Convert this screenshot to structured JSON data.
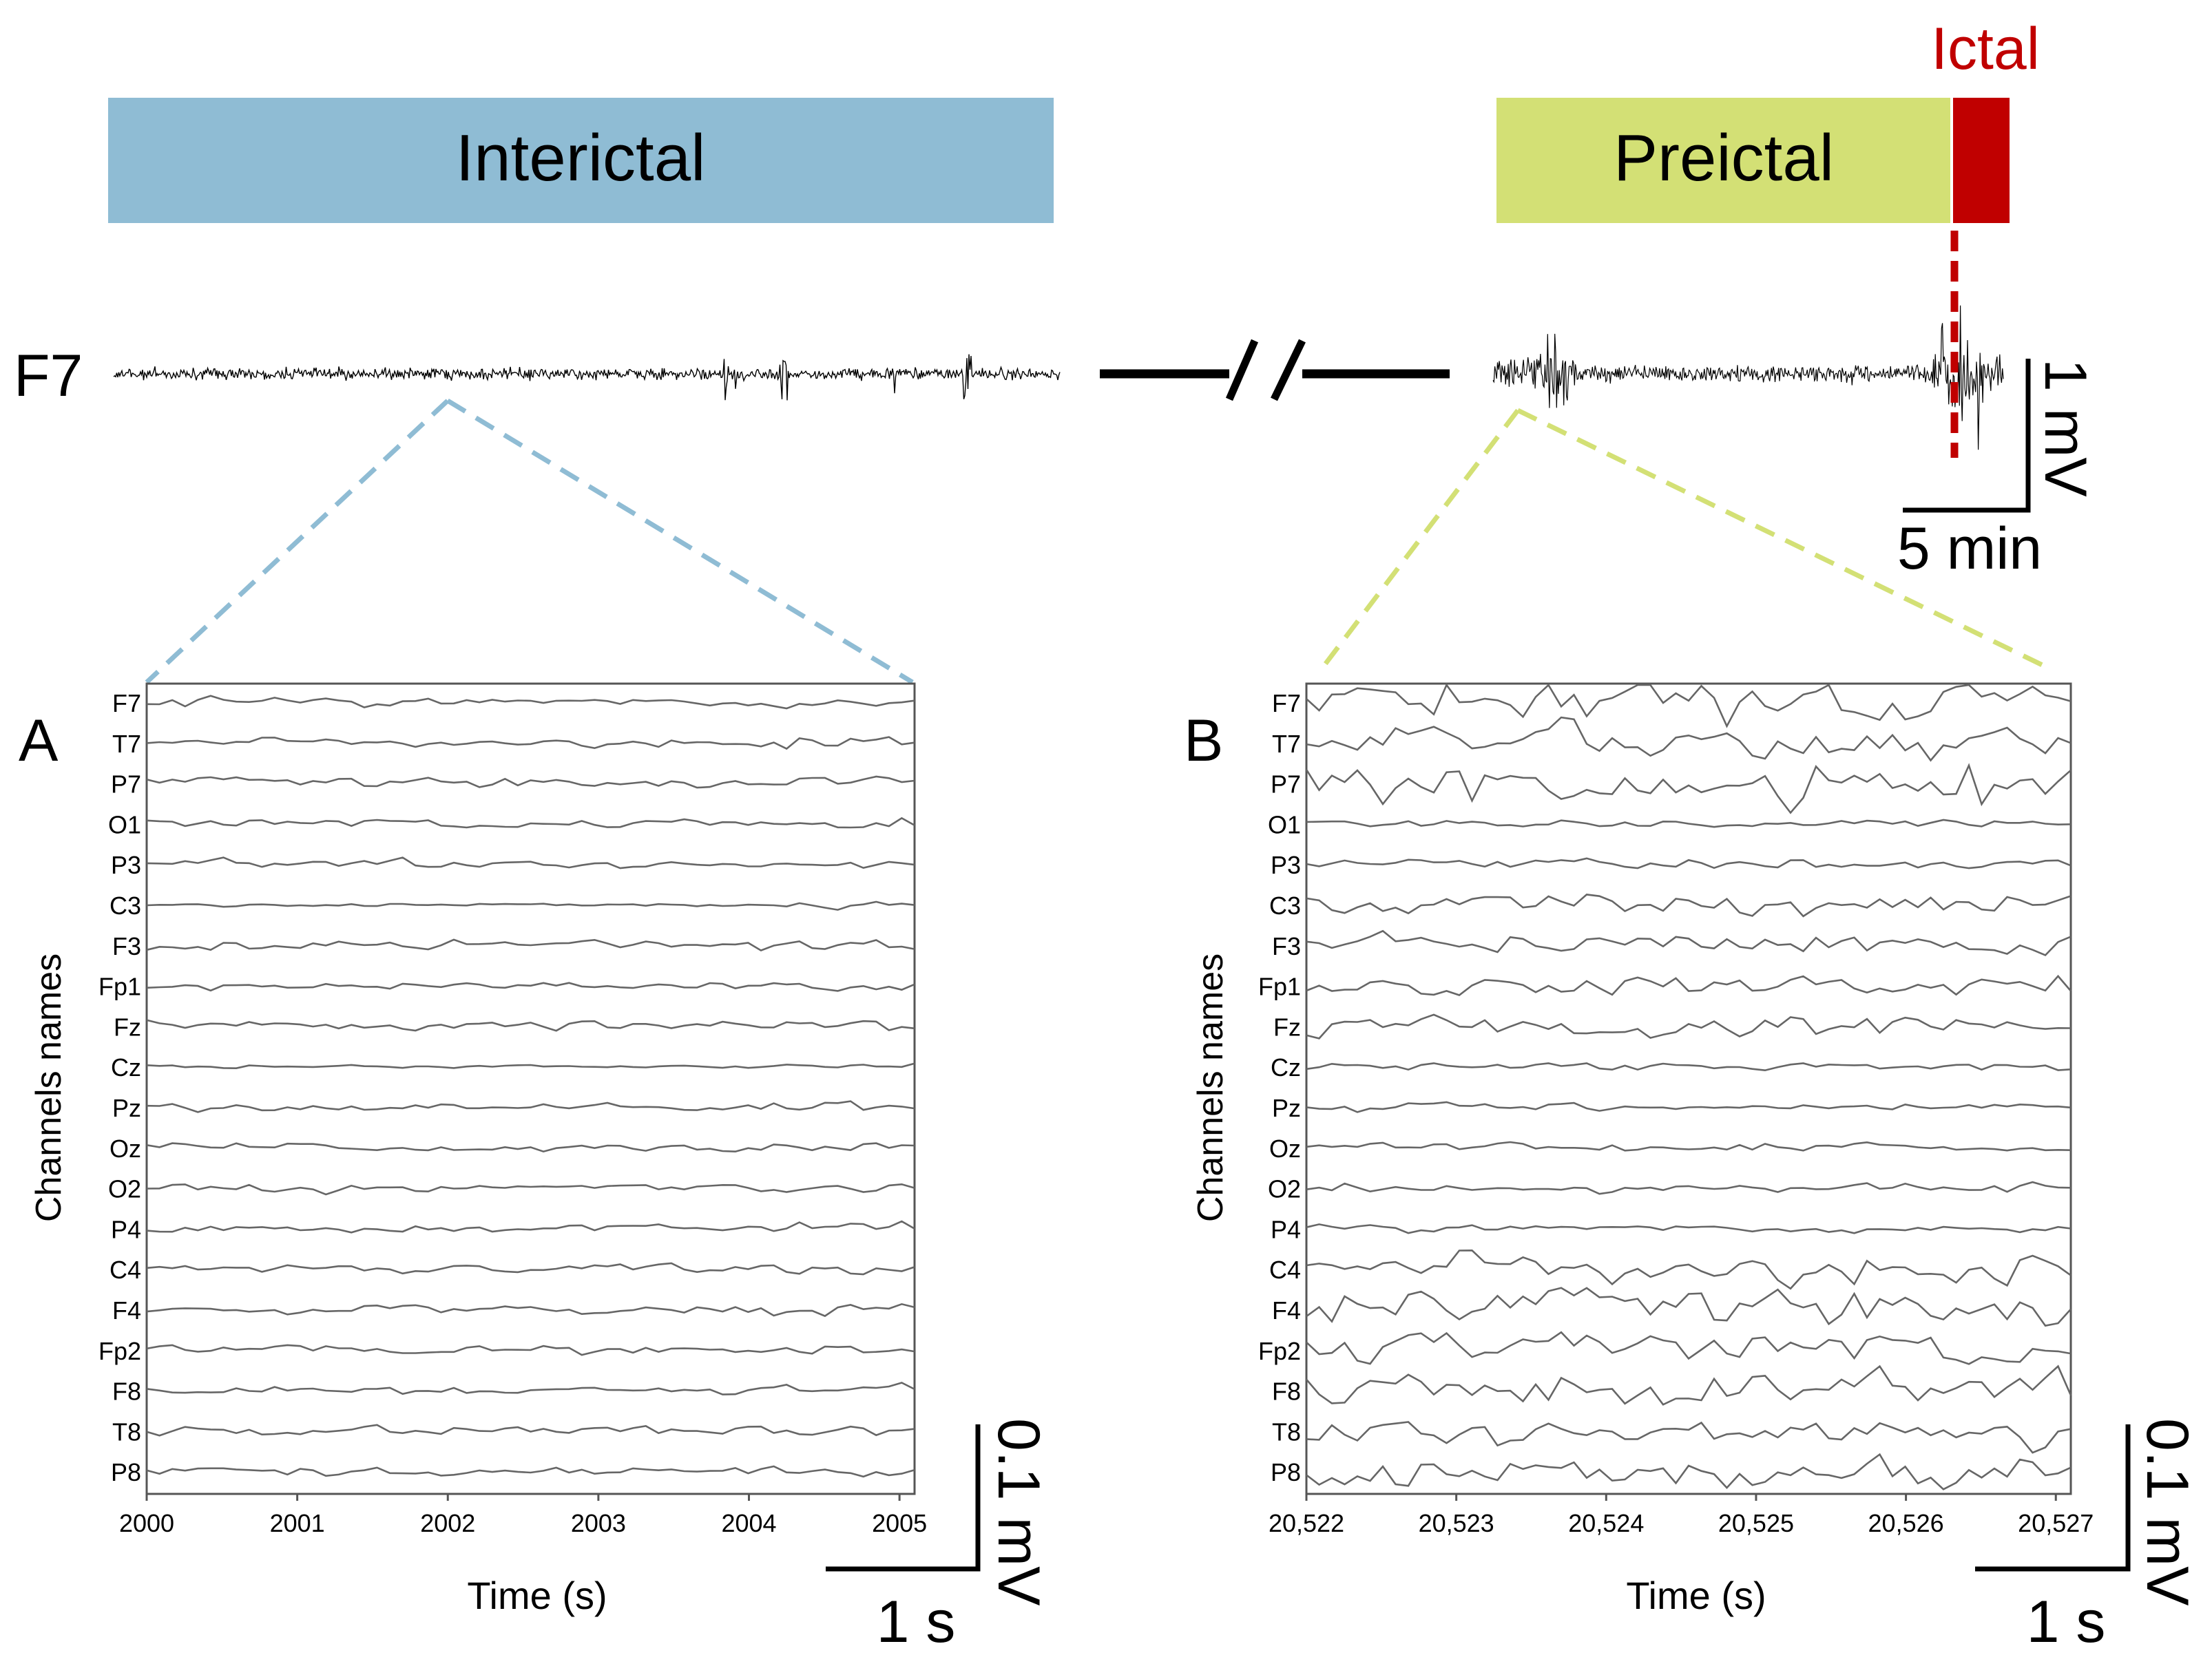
{
  "colors": {
    "interictal": "#8fbcd4",
    "preictal": "#d3e075",
    "ictal": "#c00000",
    "trace_dark": "#000000",
    "trace_grey": "#666666"
  },
  "overview": {
    "channel_label": "F7",
    "interictal_label": "Interictal",
    "preictal_label": "Preictal",
    "ictal_label": "Ictal",
    "scale_amplitude": "1 mV",
    "scale_time": "5 min"
  },
  "chart_data": [
    {
      "type": "line",
      "panel": "A",
      "title": "",
      "panel_label": "A",
      "xlabel": "Time (s)",
      "ylabel": "Channels names",
      "xlim": [
        2000,
        2005.1
      ],
      "x_ticks": [
        "2000",
        "2001",
        "2002",
        "2003",
        "2004",
        "2005"
      ],
      "channels": [
        "F7",
        "T7",
        "P7",
        "O1",
        "P3",
        "C3",
        "F3",
        "Fp1",
        "Fz",
        "Cz",
        "Pz",
        "Oz",
        "O2",
        "P4",
        "C4",
        "F4",
        "Fp2",
        "F8",
        "T8",
        "P8"
      ],
      "scale_amplitude": "0.1 mV",
      "scale_time": "1 s"
    },
    {
      "type": "line",
      "panel": "B",
      "title": "",
      "panel_label": "B",
      "xlabel": "Time (s)",
      "ylabel": "Channels names",
      "xlim": [
        20522,
        20527.1
      ],
      "x_ticks": [
        "20,522",
        "20,523",
        "20,524",
        "20,525",
        "20,526",
        "20,527"
      ],
      "channels": [
        "F7",
        "T7",
        "P7",
        "O1",
        "P3",
        "C3",
        "F3",
        "Fp1",
        "Fz",
        "Cz",
        "Pz",
        "Oz",
        "O2",
        "P4",
        "C4",
        "F4",
        "Fp2",
        "F8",
        "T8",
        "P8"
      ],
      "scale_amplitude": "0.1 mV",
      "scale_time": "1 s"
    }
  ]
}
